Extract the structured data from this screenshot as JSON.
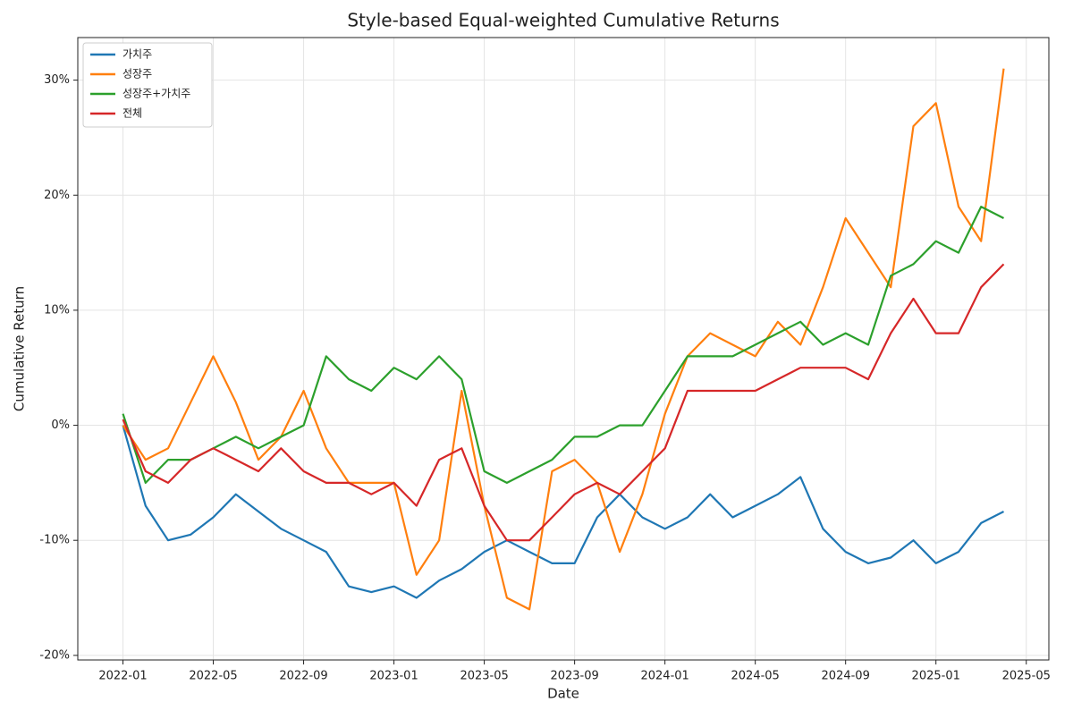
{
  "chart_data": {
    "type": "line",
    "title": "Style-based Equal-weighted Cumulative Returns",
    "x_label": "Date",
    "y_label": "Cumulative Return",
    "x": [
      "2022-01",
      "2022-02",
      "2022-03",
      "2022-04",
      "2022-05",
      "2022-06",
      "2022-07",
      "2022-08",
      "2022-09",
      "2022-10",
      "2022-11",
      "2022-12",
      "2023-01",
      "2023-02",
      "2023-03",
      "2023-04",
      "2023-05",
      "2023-06",
      "2023-07",
      "2023-08",
      "2023-09",
      "2023-10",
      "2023-11",
      "2023-12",
      "2024-01",
      "2024-02",
      "2024-03",
      "2024-04",
      "2024-05",
      "2024-06",
      "2024-07",
      "2024-08",
      "2024-09",
      "2024-10",
      "2024-11",
      "2024-12",
      "2025-01",
      "2025-02",
      "2025-03",
      "2025-04"
    ],
    "series": [
      {
        "name": "가치주",
        "color": "#1f77b4",
        "values": [
          0,
          -7,
          -10,
          -9.5,
          -8,
          -6,
          -7.5,
          -9,
          -10,
          -11,
          -14,
          -14.5,
          -14,
          -15,
          -13.5,
          -12.5,
          -11,
          -10,
          -11,
          -12,
          -12,
          -8,
          -6,
          -8,
          -9,
          -8,
          -6,
          -8,
          -7,
          -6,
          -4.5,
          -9,
          -11,
          -12,
          -11.5,
          -10,
          -12,
          -11,
          -8.5,
          -7.5
        ]
      },
      {
        "name": "성장주",
        "color": "#ff7f0e",
        "values": [
          0,
          -3,
          -2,
          2,
          6,
          2,
          -3,
          -1,
          3,
          -2,
          -5,
          -5,
          -5,
          -13,
          -10,
          3,
          -7,
          -15,
          -16,
          -4,
          -3,
          -5,
          -11,
          -6,
          1,
          6,
          8,
          7,
          6,
          9,
          7,
          12,
          18,
          15,
          12,
          26,
          28,
          19,
          16,
          31
        ]
      },
      {
        "name": "성장주+가치주",
        "color": "#2ca02c",
        "values": [
          1,
          -5,
          -3,
          -3,
          -2,
          -1,
          -2,
          -1,
          0,
          6,
          4,
          3,
          5,
          4,
          6,
          4,
          -4,
          -5,
          -4,
          -3,
          -1,
          -1,
          0,
          0,
          3,
          6,
          6,
          6,
          7,
          8,
          9,
          7,
          8,
          7,
          13,
          14,
          16,
          15,
          19,
          18
        ]
      },
      {
        "name": "전체",
        "color": "#d62728",
        "values": [
          0.5,
          -4,
          -5,
          -3,
          -2,
          -3,
          -4,
          -2,
          -4,
          -5,
          -5,
          -6,
          -5,
          -7,
          -3,
          -2,
          -7,
          -10,
          -10,
          -8,
          -6,
          -5,
          -6,
          -4,
          -2,
          3,
          3,
          3,
          3,
          4,
          5,
          5,
          5,
          4,
          8,
          11,
          8,
          8,
          12,
          14
        ]
      }
    ],
    "xlim": [
      "2021-11",
      "2025-06"
    ],
    "xticks": [
      "2022-01",
      "2022-05",
      "2022-09",
      "2023-01",
      "2023-05",
      "2023-09",
      "2024-01",
      "2024-05",
      "2024-09",
      "2025-01",
      "2025-05"
    ],
    "ylim": [
      -20.4,
      33.7
    ],
    "yticks": [
      {
        "value": -20,
        "label": "-20%"
      },
      {
        "value": -10,
        "label": "-10%"
      },
      {
        "value": 0,
        "label": "0%"
      },
      {
        "value": 10,
        "label": "10%"
      },
      {
        "value": 20,
        "label": "20%"
      },
      {
        "value": 30,
        "label": "30%"
      }
    ],
    "grid": true,
    "legend": "upper left"
  }
}
